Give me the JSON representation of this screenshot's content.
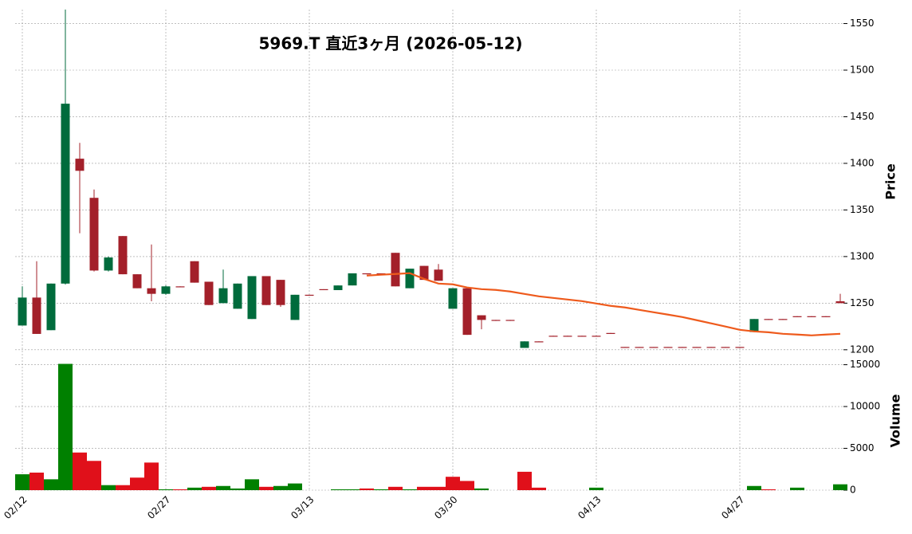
{
  "chart_data": {
    "type": "candlestick",
    "title": "5969.T  直近3ヶ月  (2026-05-12)",
    "categories": [
      "02/12",
      null,
      null,
      null,
      null,
      null,
      null,
      null,
      null,
      null,
      "02/27",
      null,
      null,
      null,
      null,
      null,
      null,
      null,
      null,
      null,
      "03/13",
      null,
      null,
      null,
      null,
      null,
      null,
      null,
      null,
      null,
      "03/30",
      null,
      null,
      null,
      null,
      null,
      null,
      null,
      null,
      null,
      "04/13",
      null,
      null,
      null,
      null,
      null,
      null,
      null,
      null,
      null,
      "04/27",
      null,
      null,
      null,
      null,
      null,
      null,
      null
    ],
    "open": [
      1226,
      1256,
      1221,
      1271,
      1405,
      1363,
      1285,
      1322,
      1281,
      1266,
      1260,
      1268,
      1295,
      1273,
      1250,
      1244,
      1233,
      1279,
      1275,
      1232,
      1259,
      1265,
      1264,
      1269,
      1282,
      1282,
      1304,
      1266,
      1290,
      1286,
      1244,
      1266,
      1237,
      1232,
      1232,
      1202,
      1209,
      1215,
      1215,
      1215,
      1215,
      1218,
      1203,
      1203,
      1203,
      1203,
      1203,
      1203,
      1203,
      1203,
      1203,
      1219,
      1233,
      1233,
      1236,
      1236,
      1236,
      1252
    ],
    "high": [
      1268,
      1295,
      1271,
      1565,
      1422,
      1372,
      1300,
      1322,
      1281,
      1313,
      1269,
      1268,
      1295,
      1273,
      1286,
      1271,
      1279,
      1279,
      1275,
      1259,
      1259,
      1265,
      1269,
      1282,
      1282,
      1282,
      1304,
      1287,
      1290,
      1292,
      1266,
      1266,
      1237,
      1232,
      1232,
      1209,
      1209,
      1215,
      1215,
      1215,
      1215,
      1218,
      1203,
      1203,
      1203,
      1203,
      1203,
      1203,
      1203,
      1203,
      1203,
      1233,
      1233,
      1233,
      1236,
      1236,
      1236,
      1260
    ],
    "low": [
      1226,
      1217,
      1221,
      1270,
      1325,
      1284,
      1284,
      1281,
      1266,
      1252,
      1259,
      1267,
      1272,
      1248,
      1250,
      1244,
      1233,
      1248,
      1246,
      1232,
      1258,
      1264,
      1264,
      1269,
      1281,
      1281,
      1268,
      1266,
      1275,
      1274,
      1244,
      1216,
      1222,
      1231,
      1231,
      1202,
      1208,
      1214,
      1214,
      1214,
      1214,
      1217,
      1202,
      1202,
      1202,
      1202,
      1202,
      1202,
      1202,
      1202,
      1202,
      1219,
      1232,
      1232,
      1235,
      1235,
      1235,
      1250
    ],
    "close": [
      1256,
      1217,
      1271,
      1464,
      1392,
      1285,
      1299,
      1281,
      1266,
      1260,
      1268,
      1267,
      1272,
      1248,
      1266,
      1271,
      1279,
      1248,
      1248,
      1259,
      1258,
      1264,
      1269,
      1282,
      1281,
      1281,
      1268,
      1287,
      1275,
      1274,
      1266,
      1216,
      1232,
      1231,
      1231,
      1209,
      1208,
      1214,
      1214,
      1214,
      1214,
      1217,
      1202,
      1202,
      1202,
      1202,
      1202,
      1202,
      1202,
      1202,
      1202,
      1233,
      1232,
      1232,
      1235,
      1235,
      1235,
      1250
    ],
    "up_color": "#006b3c",
    "down_color": "#a3202a",
    "ylabel": "Price",
    "ylim": [
      1199,
      1565
    ],
    "yticks": [
      1200,
      1250,
      1300,
      1350,
      1400,
      1450,
      1500,
      1550
    ],
    "grid": true,
    "ma": {
      "color": "#ee5a1c",
      "values": [
        null,
        null,
        null,
        null,
        null,
        null,
        null,
        null,
        null,
        null,
        null,
        null,
        null,
        null,
        null,
        null,
        null,
        null,
        null,
        null,
        null,
        null,
        null,
        null,
        1279.6,
        1280.5,
        1281.3,
        1282.2,
        1276,
        1271,
        1270.2,
        1266.8,
        1265,
        1264.2,
        1262.5,
        1259.9,
        1257.3,
        1255.6,
        1253.9,
        1252.2,
        1249.6,
        1247.1,
        1245.4,
        1242.8,
        1240.2,
        1237.7,
        1235.1,
        1231.7,
        1228.3,
        1224.9,
        1221.4,
        1219.7,
        1218.8,
        1217.1,
        1216.3,
        1215.4,
        1216.3,
        1217.1
      ]
    },
    "volume": {
      "ylabel": "Volume",
      "ylim": [
        0,
        16200
      ],
      "yticks": [
        0,
        5000,
        10000,
        15000
      ],
      "up_color": "#008000",
      "down_color": "#e0101a",
      "values": [
        1900,
        2100,
        1300,
        15100,
        4500,
        3500,
        600,
        600,
        1500,
        3300,
        100,
        100,
        300,
        400,
        500,
        200,
        1300,
        400,
        500,
        800,
        0,
        0,
        100,
        100,
        200,
        100,
        400,
        100,
        400,
        400,
        1600,
        1100,
        200,
        0,
        0,
        2200,
        300,
        0,
        0,
        0,
        300,
        0,
        0,
        0,
        0,
        0,
        0,
        0,
        0,
        0,
        0,
        500,
        100,
        0,
        300,
        0,
        0,
        700
      ]
    }
  }
}
